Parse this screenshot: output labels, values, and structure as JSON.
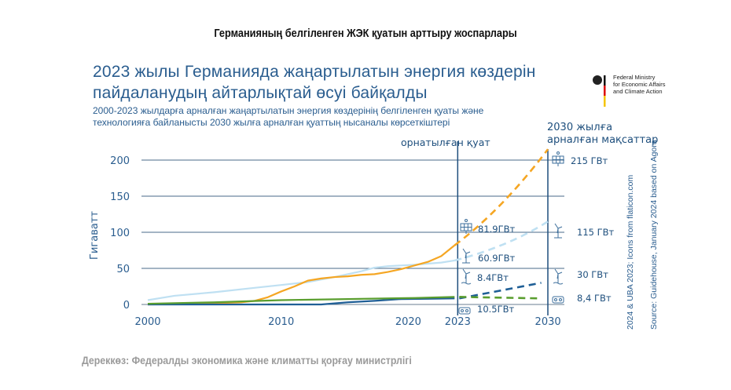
{
  "page_title": "Германияның белгіленген ЖЭК қуатын арттыру жоспарлары",
  "logo": {
    "lines": [
      "Federal Ministry",
      "for Economic Affairs",
      "and Climate Action"
    ]
  },
  "footer": "Дереккөз: Федералды экономика және климатты қорғау министрлігі",
  "source_lines": [
    "2024 & UBA 2023; Icons from flaticon.com",
    "Source: Guidehouse, January 2024 based on Agora"
  ],
  "colors": {
    "solar": "#f5a623",
    "onshore": "#bfe0f2",
    "offshore": "#1f5f96",
    "biomass": "#5a9e2f",
    "text": "#2a5d8f"
  },
  "chart_data": {
    "type": "line",
    "title": "2023 жылы Германияда жаңартылатын энергия көздерін пайдаланудың айтарлықтай өсуі байқалды",
    "subtitle_lines": [
      "2000-2023 жылдарға арналған жаңартылатын энергия көздерінің белгіленген қуаты және",
      "технологияға байланысты 2030 жылға арналған қуаттың нысаналы көрсеткіштері"
    ],
    "ylabel": "Гигаватт",
    "ylim": [
      0,
      200
    ],
    "yticks": [
      "0",
      "50",
      "100",
      "150",
      "200"
    ],
    "xticks": [
      {
        "x": 2000,
        "label": "2000"
      },
      {
        "x": 2010,
        "label": "2010"
      },
      {
        "x": 2020,
        "label": "2020"
      },
      {
        "x": 2023,
        "label": "2023"
      },
      {
        "x": 2030,
        "label": "2030"
      }
    ],
    "grid": true,
    "annotations": {
      "installed": "орнатылған қуат",
      "targets_line1": "2030 жылға",
      "targets_line2": "арналған мақсаттар"
    },
    "series": [
      {
        "key": "solar",
        "icon": "solar-panel-icon",
        "label_2023": "81.9ГВт",
        "label_2030": "215 ГВт",
        "x": [
          2000,
          2004,
          2007,
          2008,
          2009,
          2010,
          2011,
          2012,
          2013,
          2014,
          2015,
          2016,
          2017,
          2018,
          2019,
          2020,
          2021,
          2022,
          2023
        ],
        "y": [
          0,
          1,
          3,
          5,
          10,
          18,
          25,
          33,
          36,
          38,
          39,
          41,
          42,
          45,
          49,
          54,
          59,
          67,
          81.9
        ],
        "target": 215
      },
      {
        "key": "onshore",
        "icon": "onshore-wind-icon",
        "label_2023": "60.9ГВт",
        "label_2030": "115 ГВт",
        "x": [
          2000,
          2002,
          2005,
          2008,
          2010,
          2012,
          2014,
          2016,
          2017,
          2018,
          2020,
          2022,
          2023
        ],
        "y": [
          6,
          12,
          17,
          23,
          27,
          31,
          38,
          46,
          51,
          53,
          55,
          58,
          60.9
        ],
        "target": 115
      },
      {
        "key": "offshore",
        "icon": "offshore-wind-icon",
        "label_2023": "8.4ГВт",
        "label_2030": "30 ГВт",
        "x": [
          2000,
          2013,
          2015,
          2017,
          2019,
          2021,
          2023
        ],
        "y": [
          0,
          0,
          3,
          5,
          7.5,
          7.8,
          8.4
        ],
        "target": 30
      },
      {
        "key": "biomass",
        "icon": "biomass-icon",
        "label_2023": "10.5ГВт",
        "label_2030": "8,4 ГВт",
        "x": [
          2000,
          2005,
          2010,
          2015,
          2020,
          2023
        ],
        "y": [
          1,
          3,
          6,
          7.5,
          9,
          10.5
        ],
        "target": 8.4
      }
    ]
  }
}
